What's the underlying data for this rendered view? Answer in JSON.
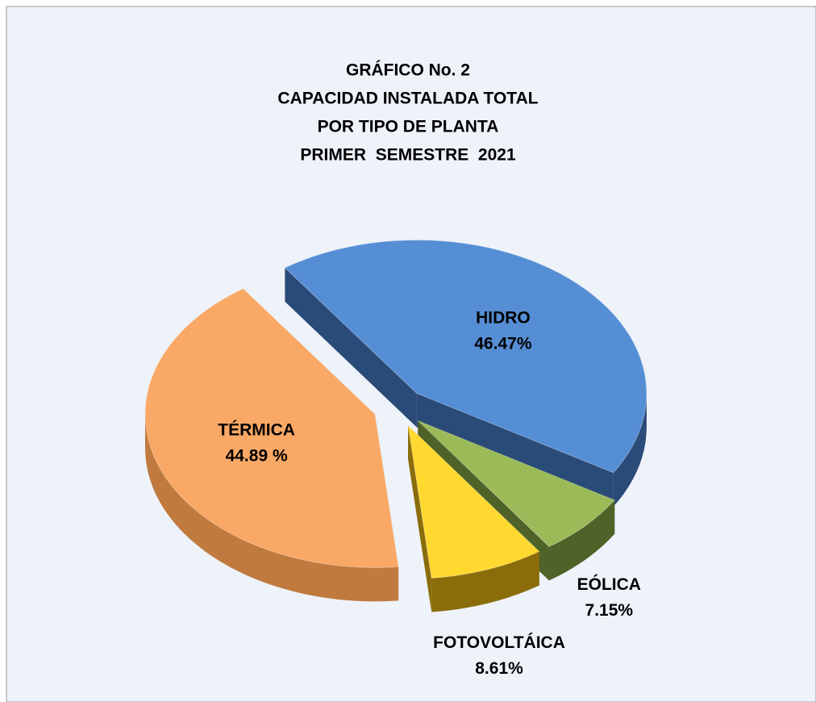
{
  "chart_data": {
    "type": "pie3d",
    "title": [
      "GRÁFICO No. 2",
      "CAPACIDAD INSTALADA TOTAL",
      "POR TIPO DE PLANTA",
      "PRIMER  SEMESTRE  2021"
    ],
    "categories": [
      "HIDRO",
      "EÓLICA",
      "FOTOVOLTÁICA",
      "TÉRMICA"
    ],
    "values": [
      46.47,
      7.15,
      8.61,
      44.89
    ],
    "value_labels": [
      "46.47%",
      "7.15%",
      "8.61%",
      "44.89 %"
    ],
    "colors": [
      "#558ed5",
      "#9bbb59",
      "#ffd92f",
      "#f9a865"
    ],
    "side_colors": [
      "#2a4a78",
      "#4f6228",
      "#8a6d0a",
      "#c07a3e"
    ]
  }
}
